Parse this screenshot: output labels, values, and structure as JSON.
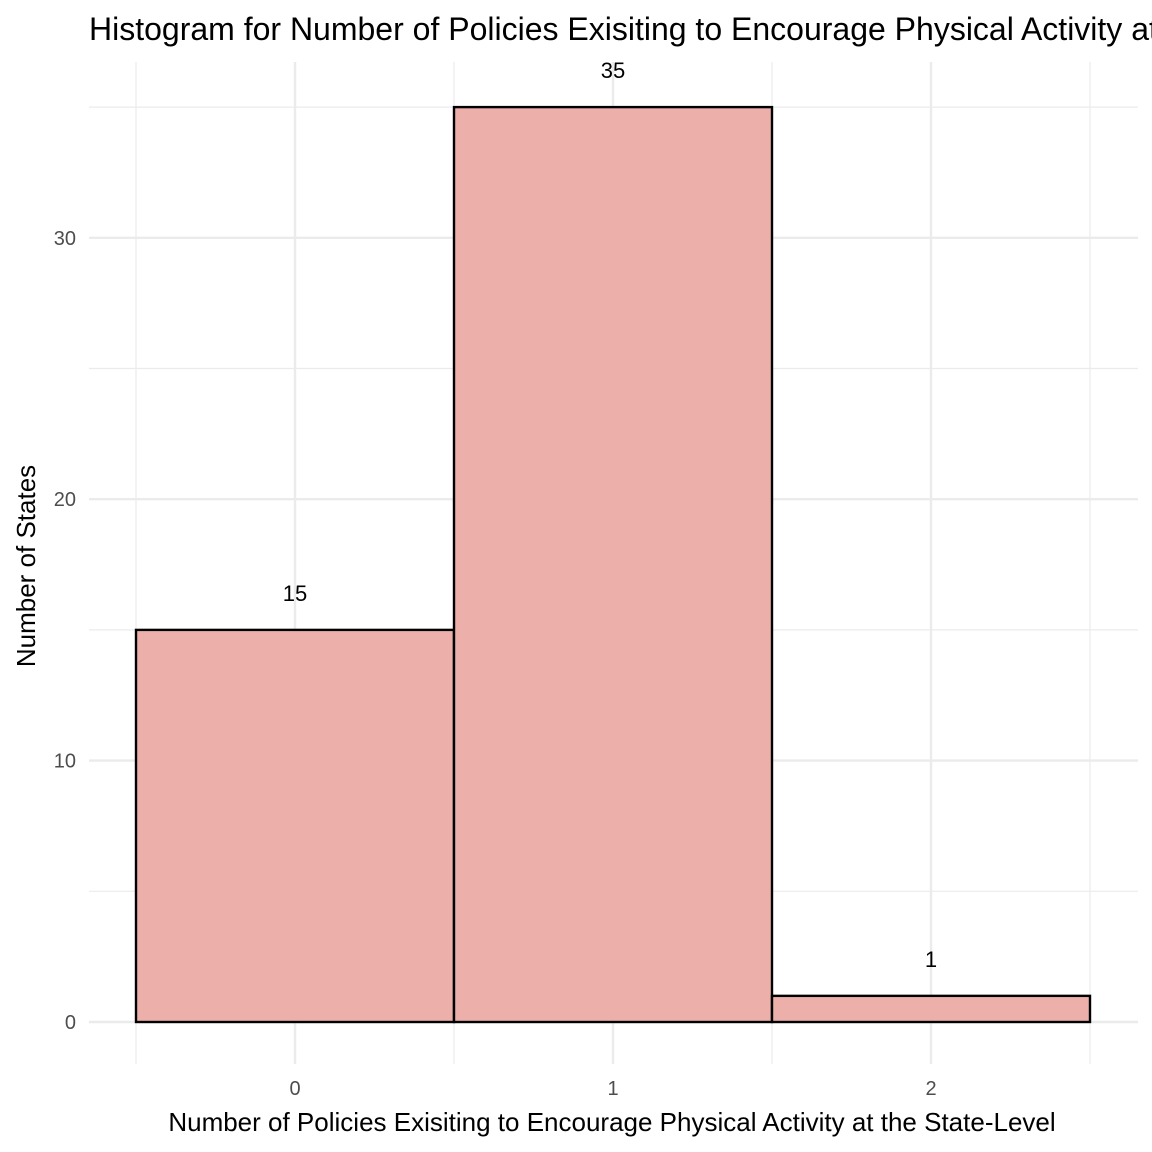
{
  "chart_data": {
    "type": "bar",
    "title": "Histogram for Number of Policies Exisiting to Encourage Physical Activity at the State-Level",
    "xlabel": "Number of Policies Exisiting to Encourage Physical Activity at the State-Level",
    "ylabel": "Number of States",
    "categories": [
      "0",
      "1",
      "2"
    ],
    "values": [
      15,
      35,
      1
    ],
    "data_labels": [
      "15",
      "35",
      "1"
    ],
    "y_ticks": [
      "0",
      "10",
      "20",
      "30"
    ],
    "y_tick_values": [
      0,
      10,
      20,
      30
    ],
    "ylim": [
      0,
      35
    ],
    "xlim": [
      -0.5,
      2.5
    ],
    "grid": true,
    "legend": "none",
    "colors": {
      "bar_fill": "#edafaa",
      "bar_outline": "#000000",
      "grid": "#ebebeb",
      "tick_text": "#4d4d4d"
    }
  }
}
